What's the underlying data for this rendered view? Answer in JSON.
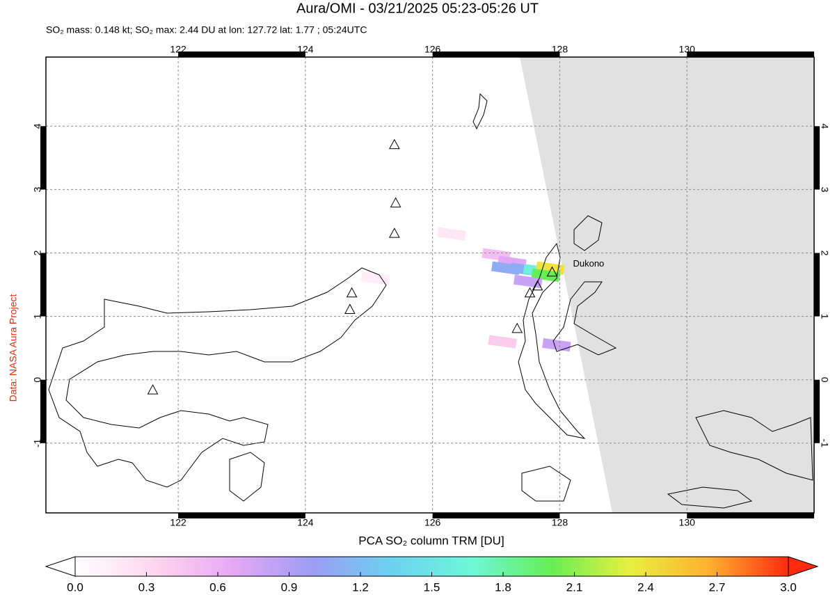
{
  "map": {
    "title": "Aura/OMI - 03/21/2025 05:23-05:26 UT",
    "subtitle": "SO₂ mass: 0.148 kt; SO₂ max: 2.44 DU at lon: 127.72 lat: 1.77 ; 05:24UTC",
    "credit": "Data: NASA Aura Project",
    "xlim": [
      119.92,
      132.0
    ],
    "ylim": [
      -2.1,
      5.09
    ],
    "xticks": [
      122,
      124,
      126,
      128,
      130
    ],
    "yticks": [
      4,
      3,
      2,
      1,
      0,
      -1
    ],
    "grid": true,
    "volcanoes": [
      [
        121.6,
        -0.17
      ],
      [
        125.4,
        3.7
      ],
      [
        125.42,
        2.78
      ],
      [
        125.4,
        2.3
      ],
      [
        124.73,
        1.36
      ],
      [
        124.7,
        1.1
      ],
      [
        127.33,
        0.8
      ],
      [
        127.53,
        1.36
      ],
      [
        127.65,
        1.47
      ],
      [
        127.88,
        1.69
      ]
    ],
    "annotation": {
      "text": "Dukono",
      "volcano": 9
    },
    "pixels": [
      {
        "lon": 127.0,
        "lat": 1.97,
        "du": 0.5
      },
      {
        "lon": 127.25,
        "lat": 1.85,
        "du": 0.7
      },
      {
        "lon": 127.15,
        "lat": 1.76,
        "du": 1.1
      },
      {
        "lon": 127.45,
        "lat": 1.74,
        "du": 1.1
      },
      {
        "lon": 127.65,
        "lat": 1.72,
        "du": 1.6
      },
      {
        "lon": 127.85,
        "lat": 1.76,
        "du": 2.4
      },
      {
        "lon": 127.78,
        "lat": 1.65,
        "du": 2.0
      },
      {
        "lon": 127.5,
        "lat": 1.55,
        "du": 0.8
      },
      {
        "lon": 127.1,
        "lat": 0.6,
        "du": 0.4
      },
      {
        "lon": 127.95,
        "lat": 0.55,
        "du": 0.8
      },
      {
        "lon": 126.3,
        "lat": 2.3,
        "du": 0.2
      },
      {
        "lon": 125.1,
        "lat": 1.6,
        "du": 0.15
      }
    ],
    "colorbar": {
      "label": "PCA SO₂ column TRM [DU]",
      "clim": [
        0,
        3
      ],
      "colors": [
        "#ffffff",
        "#ffd6ee",
        "#e6a8f5",
        "#9c9cf5",
        "#6bd2f0",
        "#6ef7d8",
        "#66ee55",
        "#e8f040",
        "#ffb030",
        "#ff2a10"
      ],
      "ticks": [
        {
          "value": 0,
          "label": "0.0"
        },
        0.3,
        0.6,
        0.9,
        1.2,
        1.5,
        1.8,
        2.1,
        2.4,
        2.7,
        {
          "value": 3,
          "label": "3.0"
        }
      ]
    }
  }
}
